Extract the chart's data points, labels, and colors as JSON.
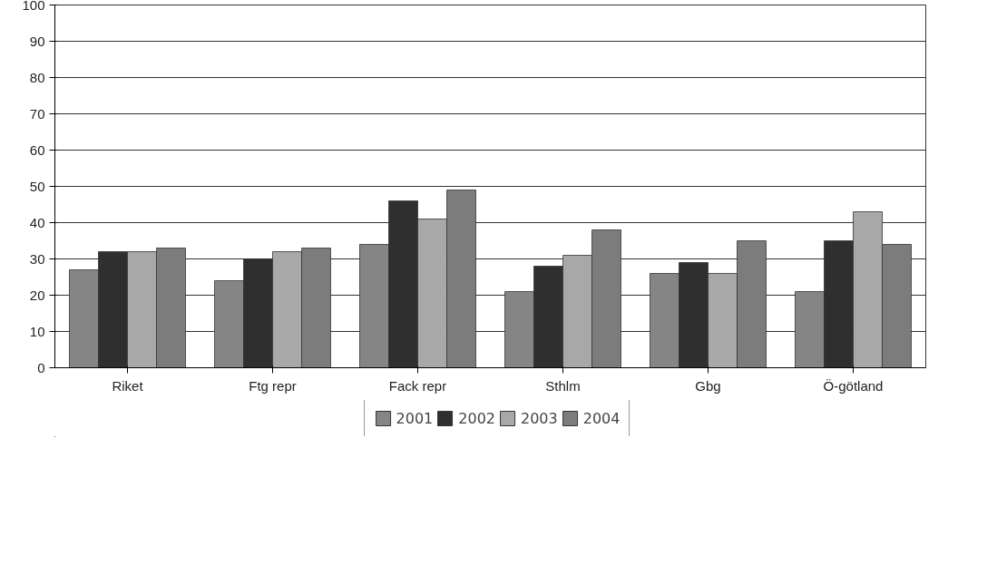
{
  "chart_data": {
    "type": "bar",
    "categories": [
      "Riket",
      "Ftg repr",
      "Fack repr",
      "Sthlm",
      "Gbg",
      "Ö-götland"
    ],
    "series": [
      {
        "name": "2001",
        "color": "#858585",
        "values": [
          27,
          24,
          34,
          21,
          26,
          21
        ]
      },
      {
        "name": "2002",
        "color": "#2f2f2f",
        "values": [
          32,
          30,
          46,
          28,
          29,
          35
        ]
      },
      {
        "name": "2003",
        "color": "#a8a8a8",
        "values": [
          32,
          32,
          41,
          31,
          26,
          43
        ]
      },
      {
        "name": "2004",
        "color": "#7c7c7c",
        "values": [
          33,
          33,
          49,
          38,
          35,
          34
        ]
      }
    ],
    "ylim": [
      0,
      100
    ],
    "yticks": [
      0,
      10,
      20,
      30,
      40,
      50,
      60,
      70,
      80,
      90,
      100
    ],
    "grid": "y",
    "legend": "bottom"
  }
}
